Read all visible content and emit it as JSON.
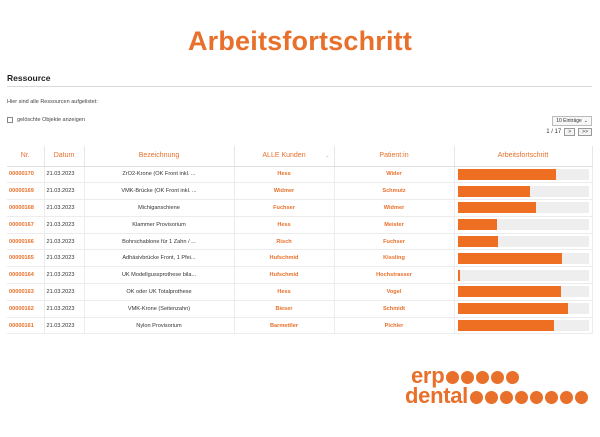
{
  "page": {
    "headline": "Arbeitsfortschritt"
  },
  "section": {
    "title": "Ressource",
    "intro": "Hier sind alle Ressourcen aufgelistet:",
    "show_deleted_label": "gelöschte Objekte anzeigen"
  },
  "controls": {
    "entries_label": "10 Einträge",
    "page_indicator": "1 / 17",
    "next_label": ">",
    "last_label": ">>"
  },
  "table": {
    "headers": [
      "Nr.",
      "Datum",
      "Bezeichnung",
      "ALLE Kunden",
      "Patient:in",
      "Arbeitsfortschritt"
    ],
    "rows": [
      {
        "nr": "00000170",
        "date": "21.03.2023",
        "desc": "ZrO2-Krone (OK Front inkl. ...",
        "customer": "Hess",
        "patient": "Wider",
        "progress": 0.75
      },
      {
        "nr": "00000169",
        "date": "21.03.2023",
        "desc": "VMK-Brücke (OK Front inkl. ...",
        "customer": "Widmer",
        "patient": "Schmutz",
        "progress": 0.55
      },
      {
        "nr": "00000168",
        "date": "21.03.2023",
        "desc": "Michiganschiene",
        "customer": "Fuchser",
        "patient": "Widmer",
        "progress": 0.6
      },
      {
        "nr": "00000167",
        "date": "21.03.2023",
        "desc": "Klammer Provisorium",
        "customer": "Hess",
        "patient": "Meister",
        "progress": 0.3
      },
      {
        "nr": "00000166",
        "date": "21.03.2023",
        "desc": "Bohrschablone für 1 Zahn / ...",
        "customer": "Risch",
        "patient": "Fuchser",
        "progress": 0.31
      },
      {
        "nr": "00000165",
        "date": "21.03.2023",
        "desc": "Adhäsivbrücke Front, 1 Pfei...",
        "customer": "Hufschmid",
        "patient": "Kissling",
        "progress": 0.8
      },
      {
        "nr": "00000164",
        "date": "21.03.2023",
        "desc": "UK Modellgussprothese bila...",
        "customer": "Hufschmid",
        "patient": "Hochstrasser",
        "progress": 0.02
      },
      {
        "nr": "00000163",
        "date": "21.03.2023",
        "desc": "OK oder UK Totalprothese",
        "customer": "Hess",
        "patient": "Vogel",
        "progress": 0.79
      },
      {
        "nr": "00000162",
        "date": "21.03.2023",
        "desc": "VMK-Krone (Seitenzahn)",
        "customer": "Bieser",
        "patient": "Schmidt",
        "progress": 0.84
      },
      {
        "nr": "00000161",
        "date": "21.03.2023",
        "desc": "Nylon Provisorium",
        "customer": "Barmettler",
        "patient": "Pichler",
        "progress": 0.74
      }
    ]
  },
  "logo": {
    "line1": "erp",
    "line2": "dental"
  },
  "colors": {
    "accent": "#e8702a",
    "bar": "#ee6f22",
    "track": "#eeeeee"
  }
}
